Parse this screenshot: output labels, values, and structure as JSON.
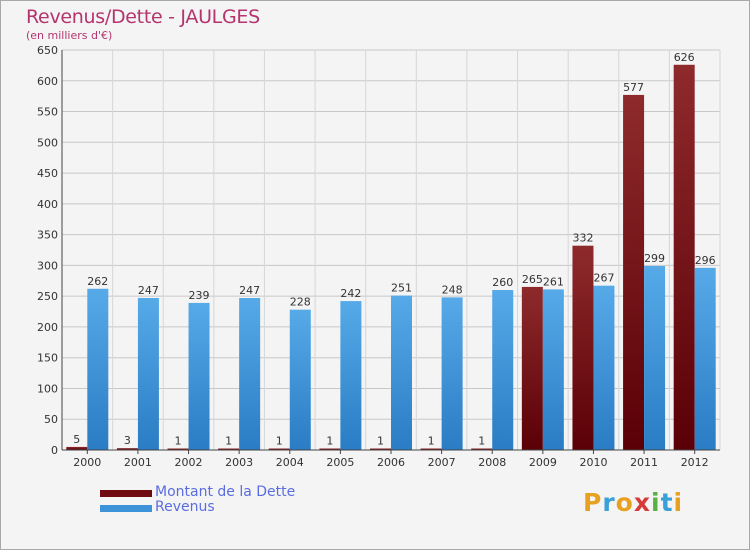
{
  "title": "Revenus/Dette - JAULGES",
  "subtitle": "(en milliers d'€)",
  "colors": {
    "debt": "#6e0a10",
    "revenue": "#3d93d8",
    "title": "#b4346e",
    "legend_text": "#5a6de0"
  },
  "legend": {
    "debt_label": "Montant de la Dette",
    "revenue_label": "Revenus"
  },
  "logo": {
    "letters": [
      "P",
      "r",
      "o",
      "x",
      "i",
      "t",
      "i"
    ],
    "colors": [
      "#e8a020",
      "#3aa0d8",
      "#e8a020",
      "#d83a3a",
      "#5ab040",
      "#3aa0d8",
      "#e8a020"
    ]
  },
  "chart_data": {
    "type": "bar",
    "title": "Revenus/Dette - JAULGES",
    "ylabel": "(en milliers d'€)",
    "xlabel": "",
    "ylim": [
      0,
      650
    ],
    "yticks": [
      0,
      50,
      100,
      150,
      200,
      250,
      300,
      350,
      400,
      450,
      500,
      550,
      600,
      650
    ],
    "grid": true,
    "categories": [
      "2000",
      "2001",
      "2002",
      "2003",
      "2004",
      "2005",
      "2006",
      "2007",
      "2008",
      "2009",
      "2010",
      "2011",
      "2012"
    ],
    "series": [
      {
        "name": "Montant de la Dette",
        "values": [
          5,
          3,
          1,
          1,
          1,
          1,
          1,
          1,
          1,
          265,
          332,
          577,
          626
        ]
      },
      {
        "name": "Revenus",
        "values": [
          262,
          247,
          239,
          247,
          228,
          242,
          251,
          248,
          260,
          261,
          267,
          299,
          296
        ]
      }
    ]
  }
}
